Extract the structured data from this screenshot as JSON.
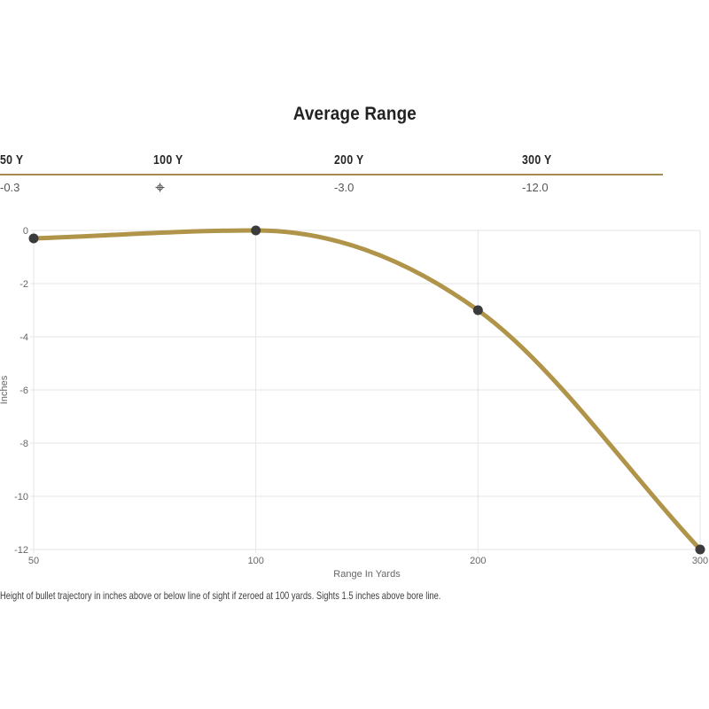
{
  "title": "Average Range",
  "summary_table": {
    "columns": [
      {
        "label": "50 Y",
        "value": "-0.3"
      },
      {
        "label": "100 Y",
        "value": "",
        "icon": "crosshair"
      },
      {
        "label": "200 Y",
        "value": "-3.0"
      },
      {
        "label": "300 Y",
        "value": "-12.0"
      }
    ],
    "rule_color": "#a58c4e"
  },
  "chart_data": {
    "type": "line",
    "title": "Average Range",
    "categories": [
      "50",
      "100",
      "200",
      "300"
    ],
    "x": [
      50,
      100,
      200,
      300
    ],
    "series": [
      {
        "name": "Average Range",
        "values": [
          -0.3,
          0,
          -3.0,
          -12.0
        ]
      }
    ],
    "xlabel": "Range In Yards",
    "ylabel": "Inches",
    "ylim": [
      -12,
      0
    ],
    "yticks": [
      0,
      -2,
      -4,
      -6,
      -8,
      -10,
      -12
    ],
    "grid": true,
    "legend": "none",
    "line_color": "#af9449",
    "point_color": "#3b3b3b",
    "grid_color": "#e6e6e6",
    "tick_color": "#666666"
  },
  "footer": "Height of bullet trajectory in inches above or below line of sight if zeroed at 100 yards. Sights 1.5 inches above bore line."
}
